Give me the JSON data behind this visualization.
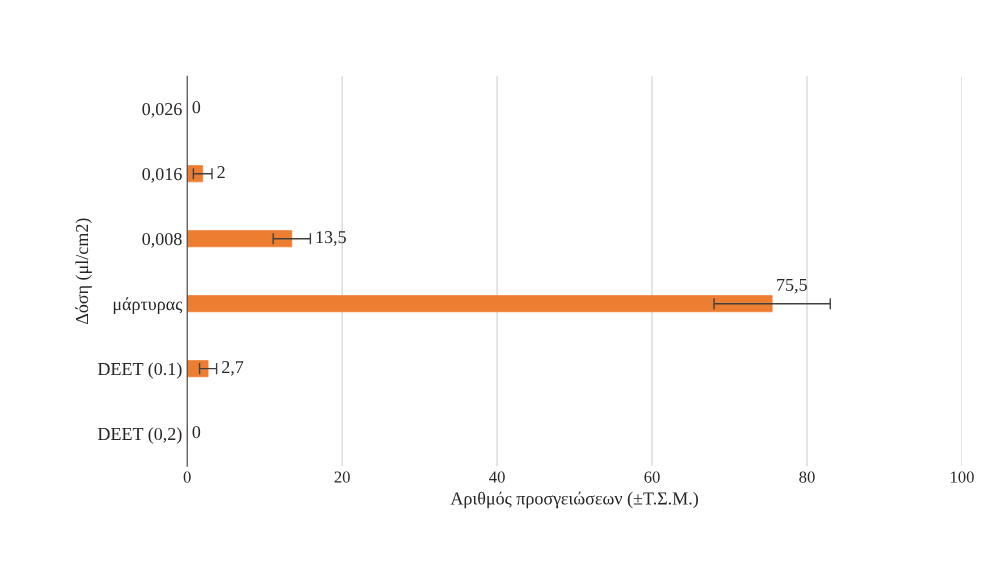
{
  "chart_data": {
    "type": "bar",
    "orientation": "horizontal",
    "xlabel": "Αριθμός προσγειώσεων (±Τ.Σ.Μ.)",
    "ylabel": "Δόση (μl/cm2)",
    "categories": [
      "0,026",
      "0,016",
      "0,008",
      "μάρτυρας",
      "DEET (0.1)",
      "DEET (0,2)"
    ],
    "values": [
      0,
      2,
      13.5,
      75.5,
      2.7,
      0
    ],
    "errors": [
      null,
      1.2,
      2.4,
      7.5,
      1.1,
      null
    ],
    "value_labels": [
      "0",
      "2",
      "13,5",
      "75,5",
      "2,7",
      "0"
    ],
    "color": "#ed7d31",
    "xlim": [
      0,
      100
    ],
    "xticks": [
      0,
      20,
      40,
      60,
      80,
      100
    ],
    "grid": "x",
    "legend": false
  }
}
